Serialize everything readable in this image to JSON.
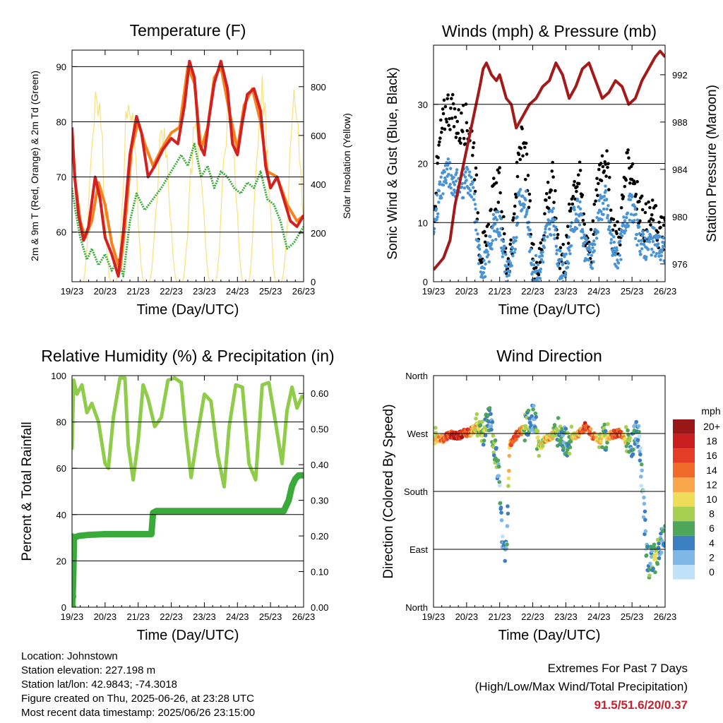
{
  "chart_data": [
    {
      "id": "temperature",
      "type": "line",
      "title": "Temperature (F)",
      "xlabel": "Time (Day/UTC)",
      "ylabel": "2m & 9m T (Red, Orange) & 2m Td (Green)",
      "ylabel_right": "Solar Insolation (Yellow)",
      "x_ticks": [
        "19/23",
        "20/23",
        "21/23",
        "22/23",
        "23/23",
        "24/23",
        "25/23",
        "26/23"
      ],
      "xlim": [
        0,
        7
      ],
      "ylim": [
        51,
        93
      ],
      "ylim_right": [
        0,
        950
      ],
      "y_ticks": [
        60,
        70,
        80,
        90
      ],
      "y_ticks_right": [
        0,
        200,
        400,
        600,
        800
      ],
      "grid": "horizontal",
      "colors": {
        "t2m": "#d42020",
        "t9m": "#f7821b",
        "td2m": "#3aab3a",
        "solar": "#f9e07a"
      },
      "series": [
        {
          "name": "2m T",
          "color": "#d42020",
          "x": [
            0,
            0.08,
            0.2,
            0.35,
            0.5,
            0.7,
            0.85,
            1.0,
            1.2,
            1.4,
            1.55,
            1.75,
            1.95,
            2.1,
            2.3,
            2.5,
            2.75,
            3.0,
            3.2,
            3.4,
            3.55,
            3.7,
            3.85,
            4.0,
            4.15,
            4.3,
            4.5,
            4.7,
            4.85,
            5.0,
            5.15,
            5.3,
            5.5,
            5.7,
            5.85,
            6.0,
            6.2,
            6.4,
            6.6,
            6.8,
            7.0
          ],
          "y": [
            79,
            70,
            63,
            58.5,
            61,
            70,
            66,
            59,
            56,
            52,
            60,
            74,
            81,
            78,
            70,
            72,
            75,
            77,
            76,
            83,
            91,
            88,
            76,
            74,
            81,
            87,
            91,
            86,
            76,
            74,
            80,
            85,
            86,
            82,
            72,
            68,
            70,
            66,
            62,
            61,
            63
          ]
        },
        {
          "name": "9m T",
          "color": "#f7821b",
          "x": [
            0,
            0.1,
            0.25,
            0.4,
            0.6,
            0.8,
            1.0,
            1.2,
            1.45,
            1.6,
            1.8,
            2.0,
            2.2,
            2.45,
            2.7,
            3.0,
            3.25,
            3.5,
            3.7,
            3.9,
            4.1,
            4.3,
            4.5,
            4.75,
            5.0,
            5.2,
            5.45,
            5.7,
            5.9,
            6.2,
            6.5,
            6.8,
            7.0
          ],
          "y": [
            78,
            69,
            62,
            59,
            62,
            69,
            65,
            58,
            53,
            61,
            75,
            80,
            76,
            72,
            75,
            78,
            79,
            90,
            87,
            75,
            79,
            88,
            90,
            82,
            75,
            83,
            86,
            80,
            71,
            70,
            65,
            62,
            63
          ]
        },
        {
          "name": "2m Td",
          "color": "#3aab3a",
          "x": [
            0,
            0.1,
            0.25,
            0.45,
            0.6,
            0.8,
            1.0,
            1.2,
            1.4,
            1.55,
            1.75,
            1.95,
            2.2,
            2.45,
            2.7,
            2.9,
            3.1,
            3.3,
            3.5,
            3.7,
            3.9,
            4.1,
            4.3,
            4.5,
            4.7,
            4.9,
            5.1,
            5.3,
            5.5,
            5.7,
            5.9,
            6.1,
            6.3,
            6.5,
            6.7,
            6.9,
            7.0
          ],
          "y": [
            68,
            64,
            59,
            55,
            57,
            54,
            56,
            53,
            55,
            52,
            62,
            67,
            64,
            66,
            68,
            70,
            72,
            74,
            72,
            76,
            70,
            72,
            68,
            71,
            70,
            68,
            67,
            69,
            68,
            71,
            66,
            65,
            62,
            57,
            58,
            60,
            61
          ]
        },
        {
          "name": "Solar Insolation",
          "color": "#f9e07a",
          "axis": "right",
          "peak_days": [
            0.75,
            1.75,
            2.75,
            3.75,
            4.75,
            5.75,
            6.75
          ],
          "peak_values": [
            920,
            890,
            680,
            720,
            810,
            880,
            820
          ]
        }
      ]
    },
    {
      "id": "winds",
      "type": "scatter",
      "title": "Winds (mph) & Pressure (mb)",
      "xlabel": "Time (Day/UTC)",
      "ylabel": "Sonic Wind & Gust (Blue, Black)",
      "ylabel_right": "Station Pressure (Maroon)",
      "x_ticks": [
        "19/23",
        "20/23",
        "21/23",
        "22/23",
        "23/23",
        "24/23",
        "25/23",
        "26/23"
      ],
      "xlim": [
        0,
        7
      ],
      "ylim": [
        0,
        40
      ],
      "ylim_right": [
        974.5,
        994.5
      ],
      "y_ticks": [
        0,
        10,
        20,
        30
      ],
      "y_ticks_right": [
        976,
        980,
        984,
        988,
        992
      ],
      "grid": "horizontal",
      "colors": {
        "wind": "#4a94d4",
        "gust": "#000000",
        "pressure": "#a31a1a"
      },
      "series": [
        {
          "name": "Station Pressure",
          "color": "#a31a1a",
          "axis": "right",
          "x": [
            0,
            0.15,
            0.3,
            0.5,
            0.65,
            0.8,
            0.95,
            1.1,
            1.25,
            1.4,
            1.5,
            1.6,
            1.75,
            1.9,
            2.0,
            2.1,
            2.2,
            2.35,
            2.5,
            2.7,
            2.9,
            3.1,
            3.3,
            3.5,
            3.7,
            3.9,
            4.1,
            4.3,
            4.5,
            4.7,
            4.9,
            5.1,
            5.3,
            5.5,
            5.7,
            5.9,
            6.1,
            6.3,
            6.5,
            6.7,
            6.85,
            7.0
          ],
          "y": [
            975.5,
            976,
            976.5,
            978,
            981,
            983,
            985,
            987,
            989,
            991,
            992.5,
            993,
            992,
            991.5,
            992,
            991,
            990,
            989.5,
            987.5,
            988.5,
            989.5,
            990,
            991,
            991.5,
            993,
            992,
            990,
            991,
            992.5,
            993,
            991.5,
            990,
            990.5,
            991.5,
            991,
            989.5,
            990,
            991.5,
            992.5,
            993.5,
            994,
            993.5
          ]
        },
        {
          "name": "Gust",
          "color": "#000000",
          "x": [
            0,
            0.2,
            0.4,
            0.6,
            0.8,
            1.0,
            1.2,
            1.4,
            1.6,
            1.8,
            2.0,
            2.2,
            2.4,
            2.6,
            2.8,
            3.0,
            3.2,
            3.4,
            3.6,
            3.8,
            4.0,
            4.2,
            4.4,
            4.6,
            4.8,
            5.0,
            5.2,
            5.4,
            5.6,
            5.8,
            6.0,
            6.2,
            6.4,
            6.6,
            6.8,
            7.0
          ],
          "y": [
            12,
            24,
            30,
            28,
            26,
            27,
            24,
            6,
            5,
            14,
            16,
            3,
            7,
            24,
            20,
            4,
            3,
            14,
            17,
            5,
            4,
            16,
            18,
            8,
            6,
            19,
            22,
            9,
            7,
            18,
            20,
            12,
            10,
            11,
            9,
            8
          ]
        },
        {
          "name": "Sonic Wind",
          "color": "#4a94d4",
          "x": [
            0,
            0.2,
            0.4,
            0.6,
            0.8,
            1.0,
            1.2,
            1.4,
            1.6,
            1.8,
            2.0,
            2.2,
            2.4,
            2.6,
            2.8,
            3.0,
            3.2,
            3.4,
            3.6,
            3.8,
            4.0,
            4.2,
            4.4,
            4.6,
            4.8,
            5.0,
            5.2,
            5.4,
            5.6,
            5.8,
            6.0,
            6.2,
            6.4,
            6.6,
            6.8,
            7.0
          ],
          "y": [
            8,
            16,
            19,
            17,
            16,
            17,
            15,
            3,
            3,
            9,
            10,
            2,
            4,
            15,
            13,
            2,
            2,
            8,
            11,
            3,
            2,
            10,
            12,
            5,
            4,
            12,
            14,
            6,
            4,
            11,
            13,
            7,
            6,
            7,
            6,
            5
          ]
        }
      ]
    },
    {
      "id": "humidity",
      "type": "line",
      "title": "Relative Humidity (%) & Precipitation (in)",
      "xlabel": "Time (Day/UTC)",
      "ylabel": "Percent & Total Rainfall",
      "x_ticks": [
        "19/23",
        "20/23",
        "21/23",
        "22/23",
        "23/23",
        "24/23",
        "25/23",
        "26/23"
      ],
      "xlim": [
        0,
        7
      ],
      "ylim": [
        0,
        100
      ],
      "ylim_right": [
        0,
        0.65
      ],
      "y_ticks": [
        0,
        20,
        40,
        60,
        80,
        100
      ],
      "y_ticks_right": [
        0.0,
        0.1,
        0.2,
        0.3,
        0.4,
        0.5,
        0.6
      ],
      "grid": "horizontal",
      "colors": {
        "rh": "#8fcc4a",
        "precip": "#3aab3a"
      },
      "series": [
        {
          "name": "Relative Humidity",
          "color": "#8fcc4a",
          "x": [
            0,
            0.05,
            0.15,
            0.3,
            0.45,
            0.6,
            0.8,
            1.0,
            1.1,
            1.25,
            1.45,
            1.6,
            1.7,
            1.85,
            2.0,
            2.15,
            2.3,
            2.5,
            2.7,
            2.9,
            3.1,
            3.3,
            3.45,
            3.6,
            3.8,
            4.0,
            4.2,
            4.4,
            4.6,
            4.75,
            4.95,
            5.15,
            5.35,
            5.55,
            5.75,
            5.95,
            6.15,
            6.35,
            6.5,
            6.65,
            6.8,
            6.95,
            7.0
          ],
          "y": [
            68,
            98,
            92,
            96,
            84,
            88,
            80,
            62,
            60,
            82,
            99,
            99,
            70,
            55,
            72,
            96,
            90,
            78,
            82,
            98,
            99,
            97,
            74,
            56,
            75,
            92,
            89,
            66,
            52,
            78,
            96,
            95,
            62,
            55,
            96,
            97,
            80,
            62,
            85,
            95,
            86,
            91,
            91
          ]
        },
        {
          "name": "Total Precipitation",
          "color": "#3aab3a",
          "axis": "right",
          "x": [
            0,
            0.02,
            0.04,
            0.06,
            0.08,
            0.2,
            0.5,
            1.0,
            1.5,
            2.0,
            2.2,
            2.4,
            2.45,
            2.55,
            2.7,
            3.0,
            3.5,
            4.0,
            4.5,
            5.0,
            5.5,
            6.0,
            6.4,
            6.55,
            6.65,
            6.75,
            6.85,
            7.0
          ],
          "y": [
            0.0,
            0.03,
            0.09,
            0.19,
            0.196,
            0.2,
            0.203,
            0.205,
            0.205,
            0.205,
            0.205,
            0.205,
            0.265,
            0.27,
            0.27,
            0.27,
            0.27,
            0.27,
            0.27,
            0.27,
            0.27,
            0.27,
            0.27,
            0.3,
            0.34,
            0.36,
            0.37,
            0.37
          ]
        }
      ]
    },
    {
      "id": "wind_direction",
      "type": "scatter",
      "title": "Wind Direction",
      "xlabel": "Time (Day/UTC)",
      "ylabel": "Direction (Colored By Speed)",
      "x_ticks": [
        "19/23",
        "20/23",
        "21/23",
        "22/23",
        "23/23",
        "24/23",
        "25/23",
        "26/23"
      ],
      "xlim": [
        0,
        7
      ],
      "ylim": [
        0,
        360
      ],
      "y_tick_values": [
        0,
        90,
        180,
        270,
        360
      ],
      "y_ticks": [
        "North",
        "East",
        "South",
        "West",
        "North"
      ],
      "grid": "horizontal",
      "colorbar": {
        "unit": "mph",
        "labels": [
          "20+",
          "18",
          "16",
          "14",
          "12",
          "10",
          "8",
          "6",
          "4",
          "2",
          "0"
        ],
        "colors": [
          "#9a1717",
          "#c81e1e",
          "#e43d27",
          "#f06a2a",
          "#f9a74a",
          "#eedd58",
          "#a7cf52",
          "#4ea65b",
          "#3b7fc0",
          "#7fb8e6",
          "#bfe2f8"
        ]
      },
      "series": [
        {
          "name": "Wind Direction",
          "x": [
            0.1,
            0.3,
            0.5,
            0.7,
            0.9,
            1.1,
            1.3,
            1.5,
            1.7,
            1.85,
            2.0,
            2.05,
            2.1,
            2.2,
            2.3,
            2.4,
            2.6,
            2.8,
            3.0,
            3.2,
            3.4,
            3.6,
            3.8,
            4.0,
            4.2,
            4.4,
            4.6,
            4.8,
            5.0,
            5.2,
            5.4,
            5.6,
            5.8,
            6.0,
            6.2,
            6.4,
            6.5,
            6.55,
            6.6,
            6.7,
            6.8,
            6.9,
            7.0
          ],
          "y": [
            260,
            262,
            268,
            265,
            270,
            272,
            280,
            268,
            300,
            250,
            190,
            135,
            100,
            85,
            250,
            262,
            272,
            280,
            300,
            248,
            262,
            268,
            275,
            255,
            264,
            270,
            282,
            268,
            260,
            264,
            268,
            272,
            262,
            255,
            272,
            120,
            60,
            70,
            80,
            75,
            90,
            100,
            110
          ],
          "speed": [
            10,
            14,
            16,
            18,
            17,
            14,
            10,
            8,
            4,
            6,
            3,
            4,
            3,
            2,
            12,
            16,
            15,
            6,
            3,
            8,
            11,
            10,
            5,
            4,
            9,
            12,
            16,
            14,
            10,
            6,
            14,
            16,
            10,
            4,
            3,
            2,
            6,
            4,
            5,
            8,
            6,
            4,
            3
          ]
        }
      ]
    }
  ],
  "footer": {
    "location": "Location: Johnstown",
    "elevation": "Station elevation: 227.198 m",
    "latlon": "Station lat/lon: 42.9843; -74.3018",
    "created": "Figure created on Thu, 2025-06-26, at 23:28 UTC",
    "recent": "Most recent data timestamp: 2025/06/26 23:15:00",
    "extremes_title": "Extremes For Past 7 Days",
    "extremes_subtitle": "(High/Low/Max Wind/Total Precipitation)",
    "extremes_values": "91.5/51.6/20/0.37"
  }
}
